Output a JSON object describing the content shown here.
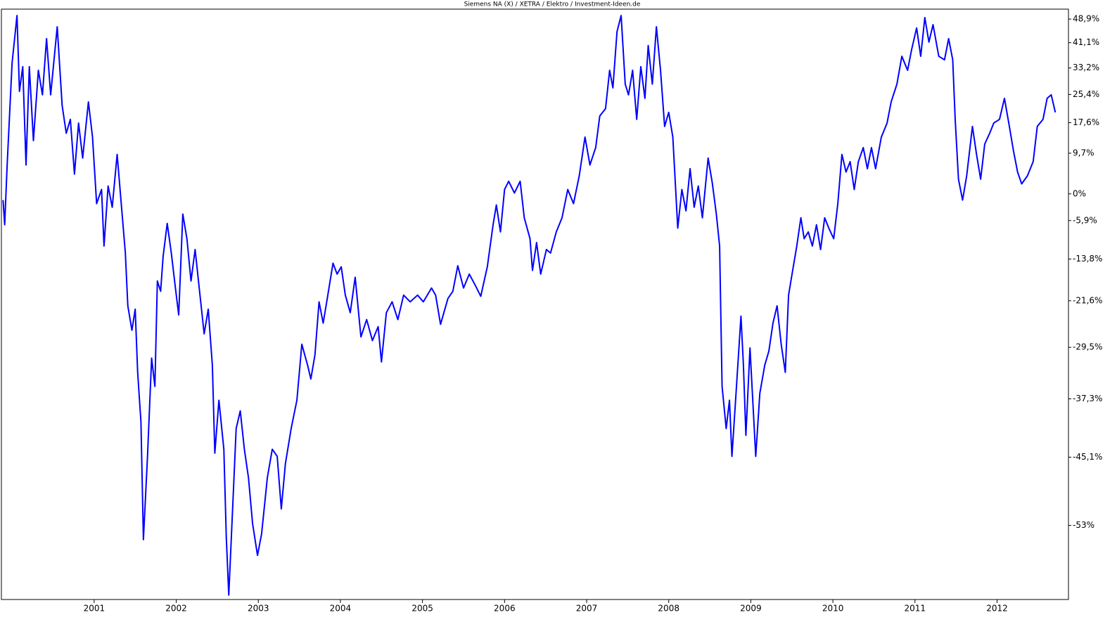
{
  "chart_data": {
    "type": "line",
    "title": "Siemens NA (X) / XETRA / Elektro / Investment-Ideen.de",
    "color": "#0000ff",
    "yscale": "log",
    "xlim": [
      1999.87,
      2012.87
    ],
    "xticks": [
      2001,
      2002,
      2003,
      2004,
      2005,
      2006,
      2007,
      2008,
      2009,
      2010,
      2011,
      2012
    ],
    "ylim": [
      -60.3,
      52.3
    ],
    "yticks": [
      {
        "value": 48.9,
        "label": "48,9%"
      },
      {
        "value": 41.1,
        "label": "41,1%"
      },
      {
        "value": 33.2,
        "label": "33,2%"
      },
      {
        "value": 25.4,
        "label": "25,4%"
      },
      {
        "value": 17.6,
        "label": "17,6%"
      },
      {
        "value": 9.7,
        "label": "9,7%"
      },
      {
        "value": 0,
        "label": "0%"
      },
      {
        "value": -5.9,
        "label": "-5,9%"
      },
      {
        "value": -13.8,
        "label": "-13,8%"
      },
      {
        "value": -21.6,
        "label": "-21,6%"
      },
      {
        "value": -29.5,
        "label": "-29,5%"
      },
      {
        "value": -37.3,
        "label": "-37,3%"
      },
      {
        "value": -45.1,
        "label": "-45,1%"
      },
      {
        "value": -53,
        "label": "-53%"
      }
    ],
    "x": [
      1999.89,
      1999.91,
      1999.94,
      2000.0,
      2000.06,
      2000.09,
      2000.13,
      2000.17,
      2000.21,
      2000.26,
      2000.32,
      2000.37,
      2000.42,
      2000.47,
      2000.55,
      2000.61,
      2000.66,
      2000.71,
      2000.76,
      2000.81,
      2000.86,
      2000.93,
      2000.98,
      2001.03,
      2001.09,
      2001.12,
      2001.17,
      2001.22,
      2001.28,
      2001.33,
      2001.38,
      2001.41,
      2001.46,
      2001.5,
      2001.53,
      2001.57,
      2001.6,
      2001.65,
      2001.7,
      2001.74,
      2001.77,
      2001.81,
      2001.84,
      2001.89,
      2001.94,
      2001.99,
      2002.03,
      2002.08,
      2002.13,
      2002.18,
      2002.23,
      2002.28,
      2002.34,
      2002.39,
      2002.44,
      2002.47,
      2002.52,
      2002.58,
      2002.61,
      2002.64,
      2002.7,
      2002.73,
      2002.78,
      2002.83,
      2002.88,
      2002.93,
      2002.99,
      2003.04,
      2003.11,
      2003.17,
      2003.23,
      2003.28,
      2003.33,
      2003.4,
      2003.47,
      2003.53,
      2003.6,
      2003.64,
      2003.69,
      2003.74,
      2003.79,
      2003.84,
      2003.91,
      2003.96,
      2004.01,
      2004.06,
      2004.12,
      2004.18,
      2004.25,
      2004.32,
      2004.39,
      2004.46,
      2004.5,
      2004.56,
      2004.63,
      2004.7,
      2004.77,
      2004.85,
      2004.94,
      2005.01,
      2005.11,
      2005.16,
      2005.22,
      2005.31,
      2005.37,
      2005.43,
      2005.5,
      2005.57,
      2005.64,
      2005.71,
      2005.79,
      2005.86,
      2005.9,
      2005.95,
      2006.0,
      2006.05,
      2006.12,
      2006.19,
      2006.24,
      2006.31,
      2006.34,
      2006.39,
      2006.44,
      2006.51,
      2006.56,
      2006.63,
      2006.7,
      2006.77,
      2006.84,
      2006.91,
      2006.98,
      2007.04,
      2007.11,
      2007.16,
      2007.23,
      2007.28,
      2007.32,
      2007.37,
      2007.42,
      2007.47,
      2007.51,
      2007.56,
      2007.61,
      2007.66,
      2007.71,
      2007.75,
      2007.8,
      2007.85,
      2007.9,
      2007.95,
      2008.0,
      2008.05,
      2008.11,
      2008.16,
      2008.21,
      2008.26,
      2008.31,
      2008.36,
      2008.41,
      2008.48,
      2008.53,
      2008.58,
      2008.62,
      2008.65,
      2008.7,
      2008.74,
      2008.77,
      2008.82,
      2008.88,
      2008.91,
      2008.94,
      2008.99,
      2009.06,
      2009.11,
      2009.17,
      2009.22,
      2009.27,
      2009.32,
      2009.37,
      2009.42,
      2009.46,
      2009.51,
      2009.56,
      2009.61,
      2009.65,
      2009.7,
      2009.75,
      2009.8,
      2009.85,
      2009.9,
      2009.95,
      2010.01,
      2010.06,
      2010.11,
      2010.16,
      2010.21,
      2010.26,
      2010.31,
      2010.37,
      2010.42,
      2010.47,
      2010.52,
      2010.59,
      2010.66,
      2010.71,
      2010.78,
      2010.84,
      2010.91,
      2010.96,
      2011.02,
      2011.07,
      2011.12,
      2011.17,
      2011.22,
      2011.29,
      2011.36,
      2011.41,
      2011.46,
      2011.49,
      2011.53,
      2011.58,
      2011.63,
      2011.7,
      2011.75,
      2011.8,
      2011.85,
      2011.91,
      2011.96,
      2012.03,
      2012.09,
      2012.15,
      2012.2,
      2012.25,
      2012.3,
      2012.37,
      2012.44,
      2012.49,
      2012.56,
      2012.61,
      2012.66,
      2012.71
    ],
    "values": [
      -1.4,
      -6.8,
      6.8,
      34.7,
      50.1,
      26.3,
      33.6,
      6.8,
      33.6,
      12.9,
      32.5,
      25.3,
      42.4,
      25.3,
      46.3,
      22.3,
      14.8,
      18.5,
      4.6,
      17.5,
      8.5,
      23.3,
      13.8,
      -2.2,
      1.0,
      -11.2,
      1.8,
      -3.0,
      9.4,
      -2.2,
      -12.6,
      -22.5,
      -26.7,
      -23.1,
      -33.4,
      -40.5,
      -54.5,
      -45.0,
      -31.2,
      -35.5,
      -18.0,
      -19.9,
      -13.3,
      -6.5,
      -12.6,
      -19.3,
      -24.1,
      -4.5,
      -9.7,
      -18.0,
      -11.9,
      -19.3,
      -27.3,
      -23.1,
      -32.3,
      -44.6,
      -37.5,
      -44.1,
      -54.3,
      -59.9,
      -48.4,
      -41.4,
      -39.0,
      -44.1,
      -47.6,
      -52.8,
      -56.1,
      -53.9,
      -47.6,
      -44.1,
      -45.0,
      -51.2,
      -45.9,
      -41.4,
      -37.5,
      -29.0,
      -32.3,
      -34.4,
      -30.7,
      -21.8,
      -25.5,
      -21.2,
      -14.6,
      -16.7,
      -15.3,
      -20.6,
      -23.7,
      -17.3,
      -27.8,
      -24.9,
      -28.4,
      -26.1,
      -31.8,
      -23.7,
      -21.8,
      -24.9,
      -20.6,
      -21.8,
      -20.6,
      -21.8,
      -19.3,
      -20.6,
      -25.7,
      -21.2,
      -19.9,
      -15.1,
      -19.3,
      -16.7,
      -18.7,
      -20.8,
      -15.3,
      -6.8,
      -2.5,
      -8.3,
      1.0,
      2.9,
      0.2,
      2.9,
      -5.3,
      -9.7,
      -16.0,
      -10.5,
      -16.7,
      -11.9,
      -12.6,
      -8.3,
      -5.3,
      1.0,
      -2.2,
      4.2,
      13.8,
      6.8,
      11.1,
      19.4,
      21.4,
      32.5,
      27.3,
      44.7,
      50.1,
      28.4,
      25.3,
      32.5,
      18.5,
      33.6,
      24.3,
      40.2,
      28.4,
      46.3,
      32.5,
      16.6,
      20.4,
      13.8,
      -7.5,
      1.0,
      -3.8,
      5.9,
      -3.0,
      1.8,
      -5.3,
      8.5,
      2.6,
      -4.5,
      -11.2,
      -35.5,
      -41.4,
      -37.5,
      -45.0,
      -36.5,
      -24.3,
      -32.3,
      -42.3,
      -29.6,
      -45.0,
      -36.5,
      -32.3,
      -30.1,
      -25.5,
      -22.5,
      -29.0,
      -33.4,
      -20.6,
      -16.0,
      -11.2,
      -5.3,
      -9.7,
      -8.3,
      -11.2,
      -6.8,
      -11.9,
      -5.3,
      -7.5,
      -9.7,
      -2.2,
      9.4,
      5.1,
      7.6,
      1.0,
      7.6,
      11.1,
      5.9,
      11.1,
      5.9,
      13.8,
      17.5,
      23.3,
      28.4,
      36.8,
      32.5,
      39.0,
      45.9,
      36.8,
      49.4,
      41.3,
      47.0,
      36.8,
      35.7,
      42.4,
      35.7,
      18.5,
      3.4,
      -1.4,
      4.2,
      16.6,
      9.4,
      3.4,
      12.0,
      14.8,
      17.5,
      18.5,
      24.3,
      16.6,
      10.3,
      5.1,
      2.3,
      4.2,
      7.6,
      16.6,
      18.5,
      24.3,
      25.3,
      20.4
    ]
  }
}
